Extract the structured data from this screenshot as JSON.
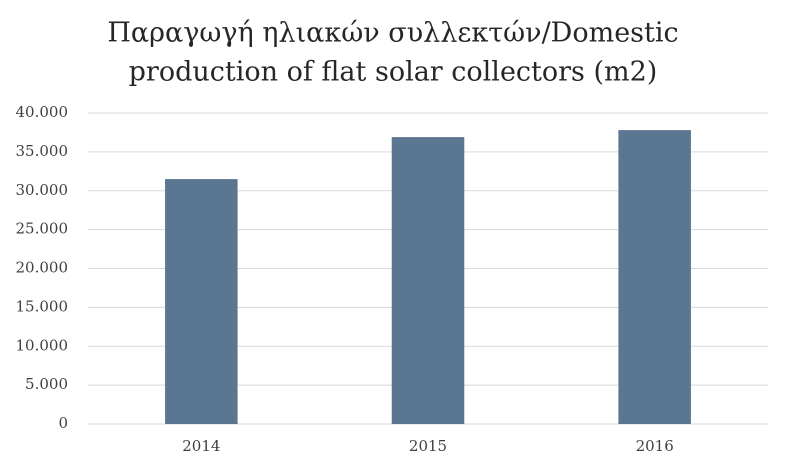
{
  "chart_data": {
    "type": "bar",
    "title": [
      "Παραγωγή ηλιακών συλλεκτών/Domestic",
      "production of flat solar collectors (m2)"
    ],
    "categories": [
      "2014",
      "2015",
      "2016"
    ],
    "values": [
      31500,
      36900,
      37800
    ],
    "color": "#5a7690",
    "ylim": [
      0,
      40000
    ],
    "yticks": [
      0,
      {
        "value": 5000,
        "label": "5.000"
      },
      {
        "value": 10000,
        "label": "10.000"
      },
      {
        "value": 15000,
        "label": "15.000"
      },
      {
        "value": 20000,
        "label": "20.000"
      },
      {
        "value": 25000,
        "label": "25.000"
      },
      {
        "value": 30000,
        "label": "30.000"
      },
      {
        "value": 35000,
        "label": "35.000"
      },
      {
        "value": 40000,
        "label": "40.000"
      }
    ],
    "grid": true
  }
}
